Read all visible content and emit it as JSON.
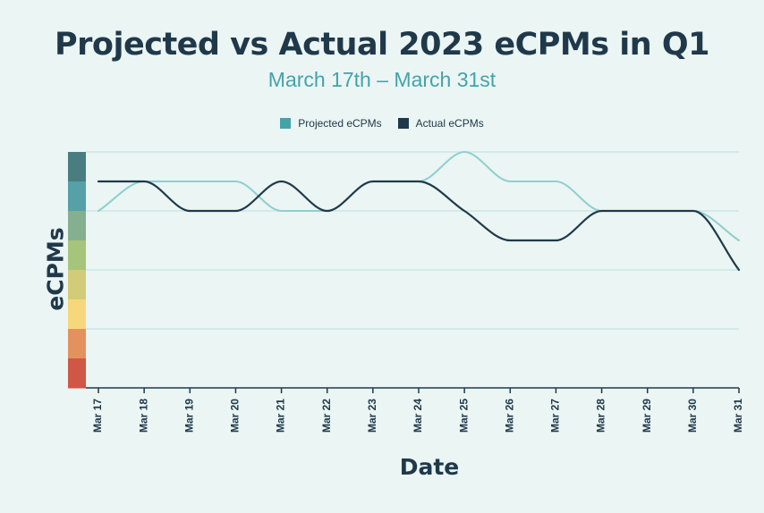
{
  "colors": {
    "background": "#eaf5f4",
    "projected": "#8fcfcf",
    "actual": "#20394a",
    "projected_legend": "#45a3a8",
    "grid": "#d3ebe8",
    "axis": "#20394a",
    "title": "#20394a",
    "subtitle": "#45a3a8",
    "scale_band": [
      "#4a7d80",
      "#56a0a7",
      "#84b08f",
      "#a6c47a",
      "#d2cb78",
      "#f7d77c",
      "#e3925e",
      "#d05645"
    ]
  },
  "chart_data": {
    "type": "line",
    "title": "Projected vs Actual 2023 eCPMs in Q1",
    "subtitle": "March 17th – March 31st",
    "xlabel": "Date",
    "ylabel": "eCPMs",
    "categories": [
      "Mar 17",
      "Mar 18",
      "Mar 19",
      "Mar 20",
      "Mar 21",
      "Mar 22",
      "Mar 23",
      "Mar 24",
      "Mar 25",
      "Mar 26",
      "Mar 27",
      "Mar 28",
      "Mar 29",
      "Mar 30",
      "Mar 31"
    ],
    "ylim": [
      0,
      8
    ],
    "y_tick_labels_shown": false,
    "grid": true,
    "legend_position": "top-center",
    "series": [
      {
        "name": "Projected eCPMs",
        "values": [
          6,
          7,
          7,
          7,
          6,
          6,
          7,
          7,
          8,
          7,
          7,
          6,
          6,
          6,
          5
        ]
      },
      {
        "name": "Actual eCPMs",
        "values": [
          7,
          7,
          6,
          6,
          7,
          6,
          7,
          7,
          6,
          5,
          5,
          6,
          6,
          6,
          4
        ]
      }
    ]
  }
}
